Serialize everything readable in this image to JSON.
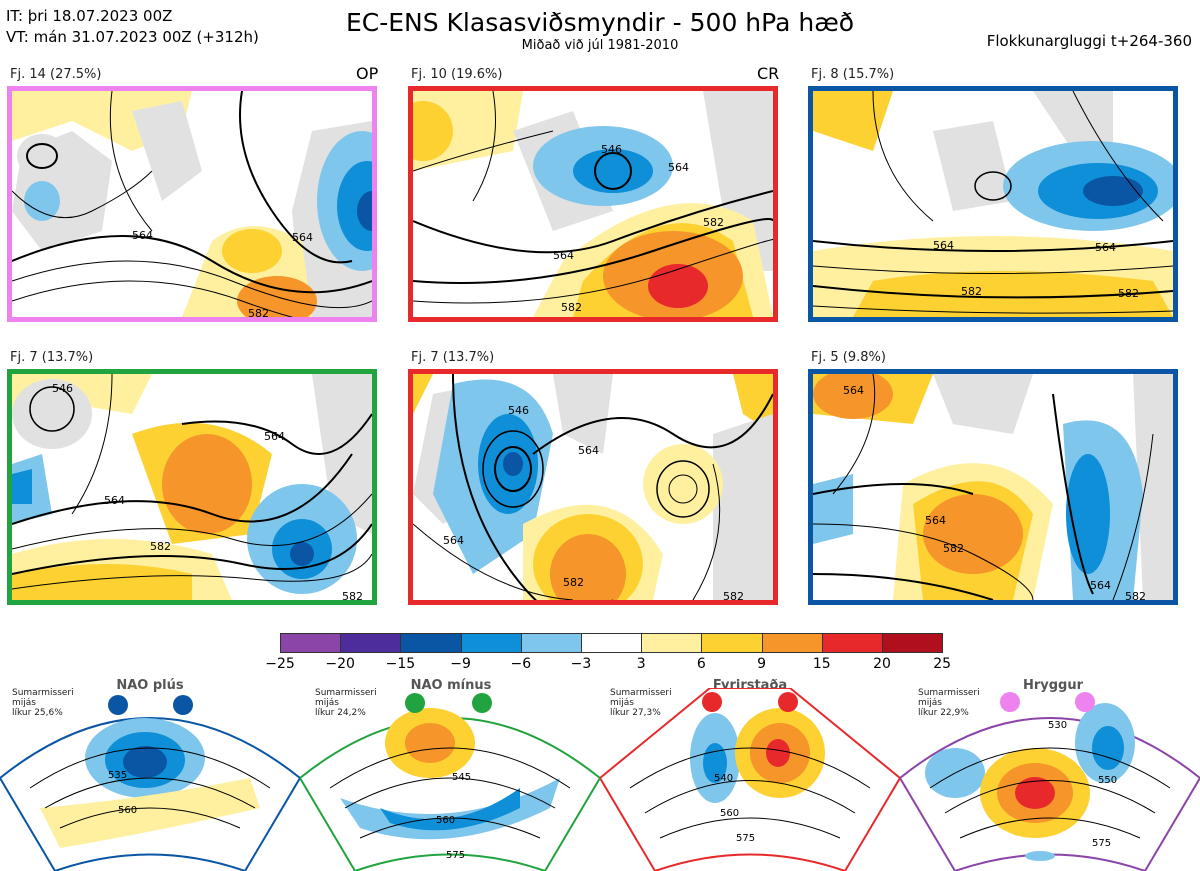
{
  "header": {
    "it_line": "IT: þri 18.07.2023 00Z",
    "vt_line": "VT: mán 31.07.2023 00Z  (+312h)",
    "title": "EC-ENS Klasasviðsmyndir - 500 hPa hæð",
    "subtitle": "Miðað við júl 1981-2010",
    "window": "Flokkunargluggi t+264-360"
  },
  "panels": [
    {
      "label": "Fj. 14 (27.5%)",
      "tag": "OP",
      "border": "#ee82ee",
      "contours": [
        "564",
        "564",
        "582"
      ]
    },
    {
      "label": "Fj. 10 (19.6%)",
      "tag": "CR",
      "border": "#e8292b",
      "contours": [
        "546",
        "564",
        "582",
        "564",
        "582"
      ]
    },
    {
      "label": "Fj. 8 (15.7%)",
      "tag": "",
      "border": "#0a55a4",
      "contours": [
        "564",
        "564",
        "582",
        "582"
      ]
    },
    {
      "label": "Fj. 7 (13.7%)",
      "tag": "",
      "border": "#21a33f",
      "contours": [
        "546",
        "564",
        "564",
        "582",
        "582"
      ]
    },
    {
      "label": "Fj. 7 (13.7%)",
      "tag": "",
      "border": "#e8292b",
      "contours": [
        "546",
        "564",
        "564",
        "582",
        "582"
      ]
    },
    {
      "label": "Fj. 5 (9.8%)",
      "tag": "",
      "border": "#0a55a4",
      "contours": [
        "564",
        "564",
        "582",
        "564",
        "582"
      ]
    }
  ],
  "colorbar": {
    "ticks": [
      "−25",
      "−20",
      "−15",
      "−9",
      "−6",
      "−3",
      "3",
      "6",
      "9",
      "15",
      "20",
      "25"
    ],
    "colors": [
      "#8b44a8",
      "#4d2c9c",
      "#0a55a4",
      "#0e8fd8",
      "#7fc6ec",
      "#ffffff",
      "#fff0a0",
      "#fdd132",
      "#f5952a",
      "#e8292b",
      "#b0101e"
    ]
  },
  "regimes": [
    {
      "name": "NAO plús",
      "color": "#0a55a4",
      "note_lines": [
        "Sumarmisseri",
        "mijás",
        "líkur 25,6%"
      ],
      "contours": [
        "535",
        "560"
      ]
    },
    {
      "name": "NAO mínus",
      "color": "#21a33f",
      "note_lines": [
        "Sumarmisseri",
        "mijás",
        "líkur 24,2%"
      ],
      "contours": [
        "545",
        "560",
        "575"
      ]
    },
    {
      "name": "Fyrirstaða",
      "color": "#e8292b",
      "note_lines": [
        "Sumarmisseri",
        "mijás",
        "líkur 27,3%"
      ],
      "contours": [
        "540",
        "560",
        "575"
      ]
    },
    {
      "name": "Hryggur",
      "color": "#ee82ee",
      "note_lines": [
        "Sumarmisseri",
        "mijás",
        "líkur 22,9%"
      ],
      "contours": [
        "530",
        "550",
        "575"
      ]
    }
  ]
}
